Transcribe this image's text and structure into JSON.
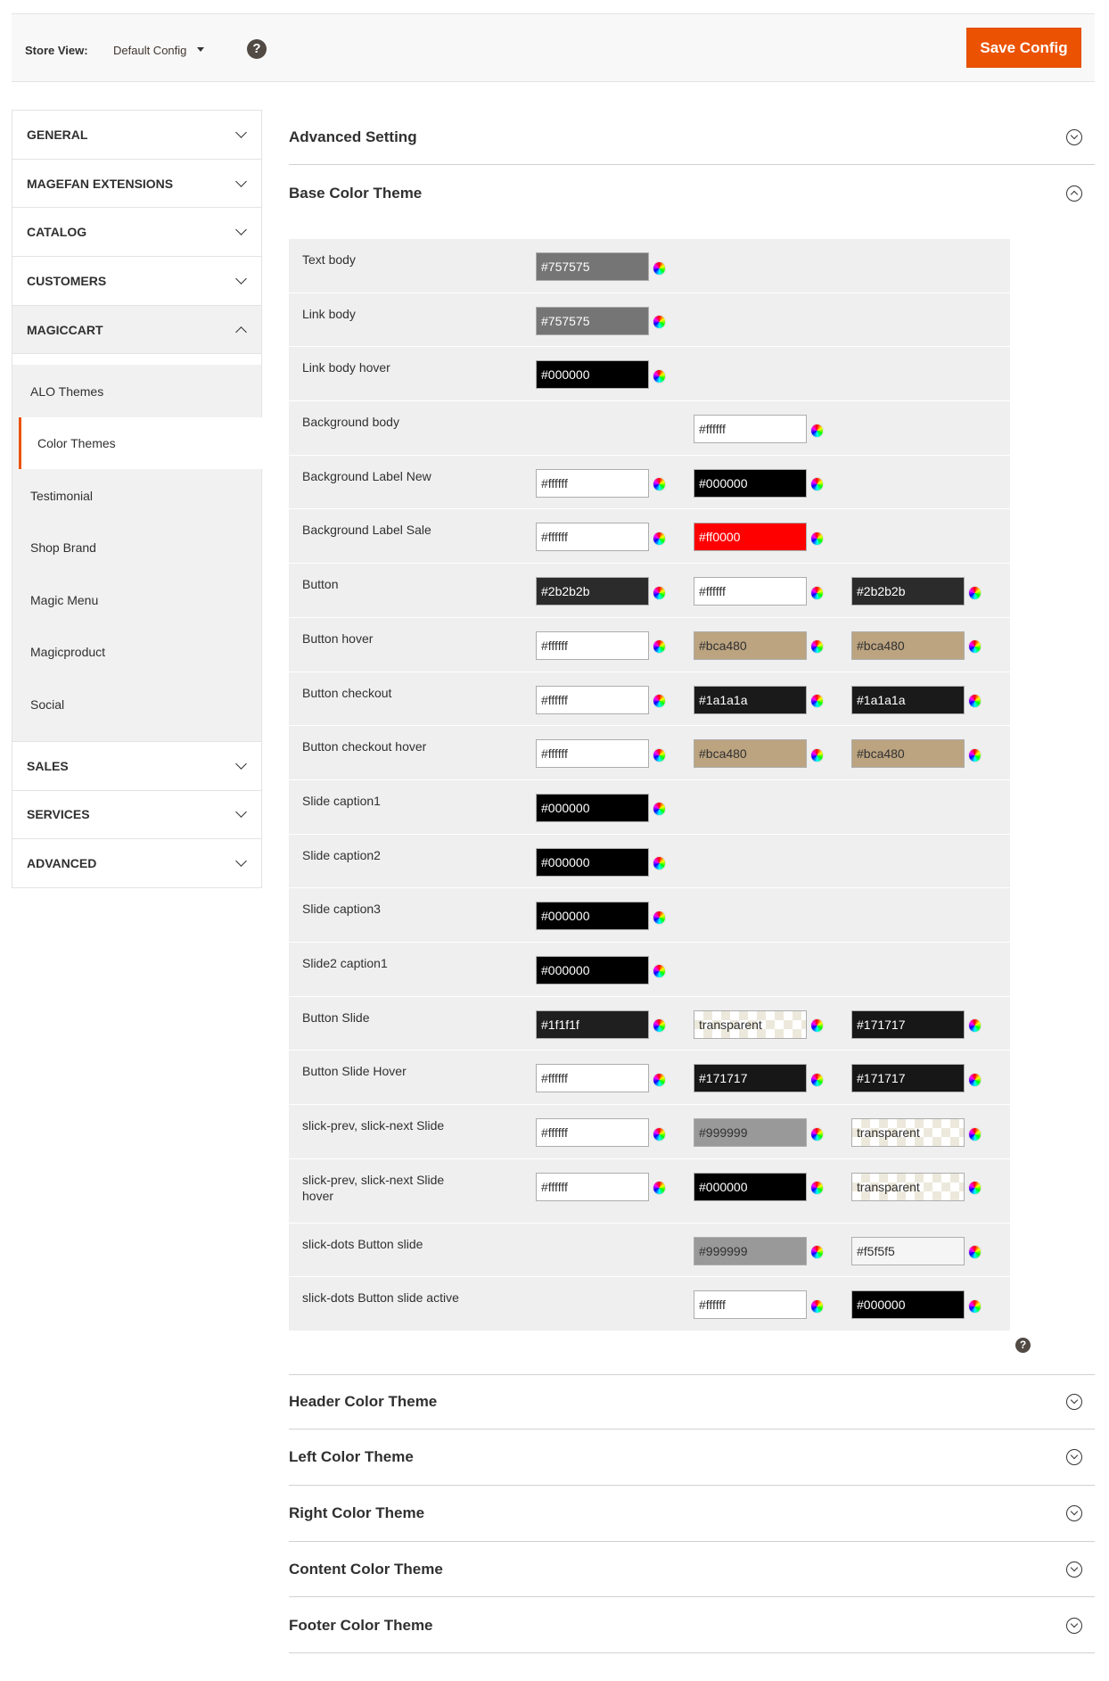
{
  "toolbar": {
    "store_view_label": "Store View:",
    "store_view_value": "Default Config",
    "help": "?",
    "save_label": "Save Config"
  },
  "colors": {
    "accent": "#eb5202"
  },
  "sidebar": {
    "tabs": [
      {
        "label": "GENERAL",
        "open": false
      },
      {
        "label": "MAGEFAN EXTENSIONS",
        "open": false
      },
      {
        "label": "CATALOG",
        "open": false
      },
      {
        "label": "CUSTOMERS",
        "open": false
      },
      {
        "label": "MAGICCART",
        "open": true
      }
    ],
    "magiccart_items": [
      "ALO Themes",
      "Color Themes",
      "Testimonial",
      "Shop Brand",
      "Magic Menu",
      "Magicproduct",
      "Social"
    ],
    "active_item": "Color Themes",
    "tabs_after": [
      "SALES",
      "SERVICES",
      "ADVANCED"
    ]
  },
  "sections": {
    "advanced": "Advanced Setting",
    "base": "Base Color Theme",
    "collapsed": [
      "Header Color Theme",
      "Left Color Theme",
      "Right Color Theme",
      "Content Color Theme",
      "Footer Color Theme"
    ]
  },
  "help_icon": "?",
  "rows": [
    {
      "label": "Text body",
      "values": [
        "#757575",
        null,
        null
      ]
    },
    {
      "label": "Link body",
      "values": [
        "#757575",
        null,
        null
      ]
    },
    {
      "label": "Link body hover",
      "values": [
        "#000000",
        null,
        null
      ]
    },
    {
      "label": "Background body",
      "values": [
        null,
        "#ffffff",
        null
      ]
    },
    {
      "label": "Background Label New",
      "values": [
        "#ffffff",
        "#000000",
        null
      ]
    },
    {
      "label": "Background Label Sale",
      "values": [
        "#ffffff",
        "#ff0000",
        null
      ]
    },
    {
      "label": "Button",
      "values": [
        "#2b2b2b",
        "#ffffff",
        "#2b2b2b"
      ]
    },
    {
      "label": "Button hover",
      "values": [
        "#ffffff",
        "#bca480",
        "#bca480"
      ]
    },
    {
      "label": "Button checkout",
      "values": [
        "#ffffff",
        "#1a1a1a",
        "#1a1a1a"
      ]
    },
    {
      "label": "Button checkout hover",
      "values": [
        "#ffffff",
        "#bca480",
        "#bca480"
      ]
    },
    {
      "label": "Slide caption1",
      "values": [
        "#000000",
        null,
        null
      ]
    },
    {
      "label": "Slide caption2",
      "values": [
        "#000000",
        null,
        null
      ]
    },
    {
      "label": "Slide caption3",
      "values": [
        "#000000",
        null,
        null
      ]
    },
    {
      "label": "Slide2 caption1",
      "values": [
        "#000000",
        null,
        null
      ]
    },
    {
      "label": "Button Slide",
      "values": [
        "#1f1f1f",
        "transparent",
        "#171717"
      ]
    },
    {
      "label": "Button Slide Hover",
      "values": [
        "#ffffff",
        "#171717",
        "#171717"
      ]
    },
    {
      "label": "slick-prev, slick-next Slide",
      "values": [
        "#ffffff",
        "#999999",
        "transparent"
      ]
    },
    {
      "label": "slick-prev, slick-next Slide hover",
      "values": [
        "#ffffff",
        "#000000",
        "transparent"
      ]
    },
    {
      "label": "slick-dots Button slide",
      "values": [
        null,
        "#999999",
        "#f5f5f5"
      ]
    },
    {
      "label": "slick-dots Button slide active",
      "values": [
        null,
        "#ffffff",
        "#000000"
      ]
    }
  ]
}
